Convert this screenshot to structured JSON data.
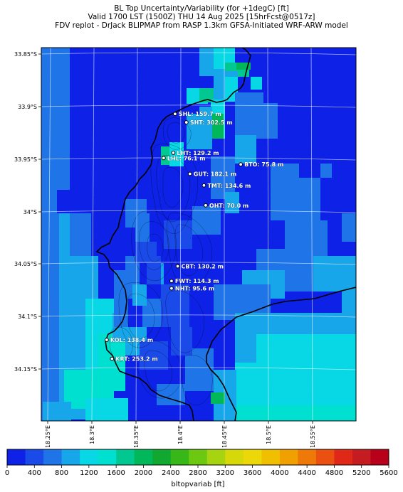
{
  "titles": {
    "line1": "BL Top Uncertainty/Variability (for +1degC) [ft]",
    "line2": "Valid 1700 LST (1500Z) THU 14 Aug 2025 [15hrFcst@0517z]",
    "line3": "FDV replot - DrJack BLIPMAP from RASP 1.3km GFSA-Initiated WRF-ARW model"
  },
  "y_ticks": [
    "33.85°S",
    "33.9°S",
    "33.95°S",
    "34°S",
    "34.05°S",
    "34.1°S",
    "34.15°S"
  ],
  "x_ticks": [
    "18.25°E",
    "18.3°E",
    "18.35°E",
    "18.4°E",
    "18.45°E",
    "18.5°E",
    "18.55°E"
  ],
  "stations": [
    {
      "label": "SHL: 159.7 m",
      "lat": -33.907,
      "lon": 18.395
    },
    {
      "label": "SHT: 302.5 m",
      "lat": -33.915,
      "lon": 18.408
    },
    {
      "label": "LHT: 129.2 m",
      "lat": -33.944,
      "lon": 18.393
    },
    {
      "label": "LHL: 76.1 m",
      "lat": -33.949,
      "lon": 18.382
    },
    {
      "label": "BTO: 75.8 m",
      "lat": -33.955,
      "lon": 18.47
    },
    {
      "label": "GUT: 182.1 m",
      "lat": -33.964,
      "lon": 18.412
    },
    {
      "label": "TMT: 134.6 m",
      "lat": -33.975,
      "lon": 18.428
    },
    {
      "label": "OHT: 70.0 m",
      "lat": -33.994,
      "lon": 18.43
    },
    {
      "label": "CBT: 130.2 m",
      "lat": -34.052,
      "lon": 18.398
    },
    {
      "label": "FWT: 114.3 m",
      "lat": -34.066,
      "lon": 18.391
    },
    {
      "label": "NHT: 95.6 m",
      "lat": -34.073,
      "lon": 18.391
    },
    {
      "label": "KOL: 138.4 m",
      "lat": -34.122,
      "lon": 18.317
    },
    {
      "label": "KRT: 253.2 m",
      "lat": -34.14,
      "lon": 18.323
    }
  ],
  "colorbar": {
    "label": "bltopvariab [ft]",
    "ticks": [
      "0",
      "400",
      "800",
      "1200",
      "1600",
      "2000",
      "2400",
      "2800",
      "3200",
      "3600",
      "4000",
      "4400",
      "4800",
      "5200",
      "5600"
    ],
    "colors": [
      "#0d22e6",
      "#1a4ae8",
      "#1f75e8",
      "#18a6ea",
      "#08d7e6",
      "#00e0d0",
      "#00c890",
      "#00b85a",
      "#10a830",
      "#38b818",
      "#6cc810",
      "#a6d410",
      "#d6d80a",
      "#ecd808",
      "#f0c000",
      "#f0a000",
      "#ee7808",
      "#ea5010",
      "#e02818",
      "#c41c20",
      "#b8001a"
    ]
  },
  "field_colors": {
    "base": "#0d22e6",
    "low": "#1a4ae8",
    "mid": "#1f75e8",
    "light": "#18a6ea",
    "cyan": "#08d7e6",
    "teal": "#00e0d0",
    "sea": "#00c890",
    "green": "#00b85a"
  }
}
